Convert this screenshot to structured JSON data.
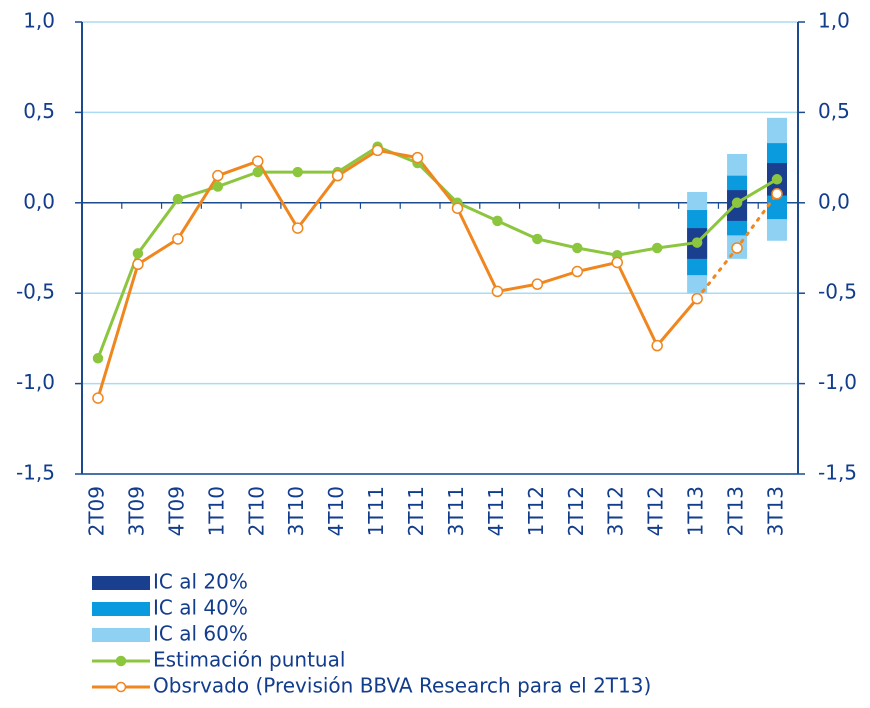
{
  "chart_data": {
    "type": "line",
    "categories": [
      "2T09",
      "3T09",
      "4T09",
      "1T10",
      "2T10",
      "3T10",
      "4T10",
      "1T11",
      "2T11",
      "3T11",
      "4T11",
      "1T12",
      "2T12",
      "3T12",
      "4T12",
      "1T13",
      "2T13",
      "3T13"
    ],
    "ylim": [
      -1.5,
      1.0
    ],
    "yticks": [
      {
        "value": -1.5,
        "label": "-1,5"
      },
      {
        "value": -1.0,
        "label": "-1,0"
      },
      {
        "value": -0.5,
        "label": "-0,5"
      },
      {
        "value": 0,
        "label": "0,0"
      },
      {
        "value": 0.5,
        "label": "0,5"
      },
      {
        "value": 1.0,
        "label": "1,0"
      }
    ],
    "y2lim": [
      -1.5,
      1.0
    ],
    "y2ticks": [
      {
        "value": -1.5,
        "label": "-1,5"
      },
      {
        "value": -1.0,
        "label": "-1,0"
      },
      {
        "value": -0.5,
        "label": "-0,5"
      },
      {
        "value": 0,
        "label": "0,0"
      },
      {
        "value": 0.5,
        "label": "0,5"
      },
      {
        "value": 1.0,
        "label": "1,0"
      }
    ],
    "grid": true,
    "bands": [
      {
        "name": "IC al 20%",
        "color": "#1b3f8f",
        "low": [
          null,
          null,
          null,
          null,
          null,
          null,
          null,
          null,
          null,
          null,
          null,
          null,
          null,
          null,
          null,
          -0.31,
          -0.1,
          0.04
        ],
        "high": [
          null,
          null,
          null,
          null,
          null,
          null,
          null,
          null,
          null,
          null,
          null,
          null,
          null,
          null,
          null,
          -0.14,
          0.07,
          0.22
        ]
      },
      {
        "name": "IC al 40%",
        "color": "#0a9ade",
        "low": [
          null,
          null,
          null,
          null,
          null,
          null,
          null,
          null,
          null,
          null,
          null,
          null,
          null,
          null,
          null,
          -0.4,
          -0.18,
          -0.09
        ],
        "high": [
          null,
          null,
          null,
          null,
          null,
          null,
          null,
          null,
          null,
          null,
          null,
          null,
          null,
          null,
          null,
          -0.04,
          0.15,
          0.33
        ]
      },
      {
        "name": "IC al 60%",
        "color": "#8fd1f2",
        "low": [
          null,
          null,
          null,
          null,
          null,
          null,
          null,
          null,
          null,
          null,
          null,
          null,
          null,
          null,
          null,
          -0.5,
          -0.31,
          -0.21
        ],
        "high": [
          null,
          null,
          null,
          null,
          null,
          null,
          null,
          null,
          null,
          null,
          null,
          null,
          null,
          null,
          null,
          0.06,
          0.27,
          0.47
        ]
      }
    ],
    "series": [
      {
        "name": "Estimación puntual",
        "color": "#8cc63f",
        "marker": "filled",
        "values": [
          -0.86,
          -0.28,
          0.02,
          0.09,
          0.17,
          0.17,
          0.17,
          0.31,
          0.22,
          0.0,
          -0.1,
          -0.2,
          -0.25,
          -0.29,
          -0.25,
          -0.22,
          0.0,
          0.13
        ]
      },
      {
        "name": "Obsrvado (Previsión BBVA Research para el  2T13)",
        "color": "#f0861e",
        "marker": "hollow",
        "dash_from_index": 15,
        "values": [
          -1.08,
          -0.34,
          -0.2,
          0.15,
          0.23,
          -0.14,
          0.15,
          0.29,
          0.25,
          -0.03,
          -0.49,
          -0.45,
          -0.38,
          -0.33,
          -0.79,
          -0.53,
          -0.25,
          0.05
        ]
      }
    ]
  }
}
